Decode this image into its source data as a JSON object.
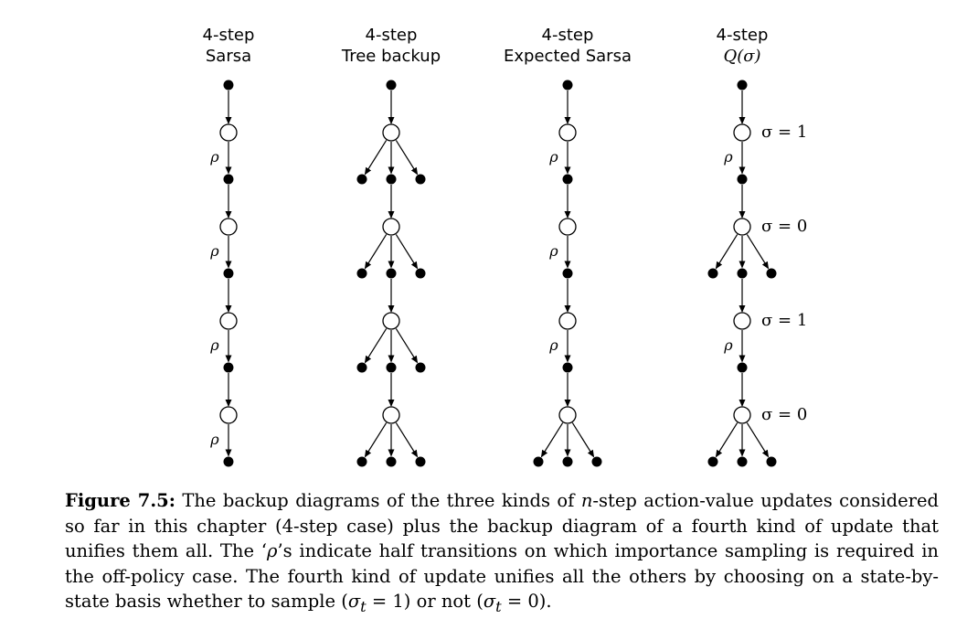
{
  "columns": [
    {
      "title_line1": "4-step",
      "title_line2": "Sarsa",
      "levels": [
        {
          "branching": false,
          "rho": true,
          "sigma": ""
        },
        {
          "branching": false,
          "rho": true,
          "sigma": ""
        },
        {
          "branching": false,
          "rho": true,
          "sigma": ""
        },
        {
          "branching": false,
          "rho": true,
          "sigma": ""
        }
      ]
    },
    {
      "title_line1": "4-step",
      "title_line2": "Tree backup",
      "levels": [
        {
          "branching": true,
          "rho": false,
          "sigma": ""
        },
        {
          "branching": true,
          "rho": false,
          "sigma": ""
        },
        {
          "branching": true,
          "rho": false,
          "sigma": ""
        },
        {
          "branching": true,
          "rho": false,
          "sigma": ""
        }
      ]
    },
    {
      "title_line1": "4-step",
      "title_line2": "Expected Sarsa",
      "levels": [
        {
          "branching": false,
          "rho": true,
          "sigma": ""
        },
        {
          "branching": false,
          "rho": true,
          "sigma": ""
        },
        {
          "branching": false,
          "rho": true,
          "sigma": ""
        },
        {
          "branching": true,
          "rho": false,
          "sigma": ""
        }
      ]
    },
    {
      "title_line1": "4-step",
      "title_line2": "Q(σ)",
      "levels": [
        {
          "branching": false,
          "rho": true,
          "sigma": "σ = 1"
        },
        {
          "branching": true,
          "rho": false,
          "sigma": "σ = 0"
        },
        {
          "branching": false,
          "rho": true,
          "sigma": "σ = 1"
        },
        {
          "branching": true,
          "rho": false,
          "sigma": "σ = 0"
        }
      ]
    }
  ],
  "rho_symbol": "ρ",
  "caption": {
    "label": "Figure 7.5:",
    "text_1": " The backup diagrams of the three kinds of ",
    "n": "n",
    "text_2": "-step action-value updates considered so far in this chapter (4-step case) plus the backup diagram of a fourth kind of update that unifies them all. The ‘",
    "rho": "ρ",
    "text_3": "’s indicate half transitions on which importance sampling is required in the off-policy case. The fourth kind of update unifies all the others by choosing on a state-by-state basis whether to sample (",
    "sigma_t_1": "σ",
    "sub_t_1": "t",
    "text_4": " = 1) or not (",
    "sigma_t_2": "σ",
    "sub_t_2": "t",
    "text_5": " = 0)."
  }
}
